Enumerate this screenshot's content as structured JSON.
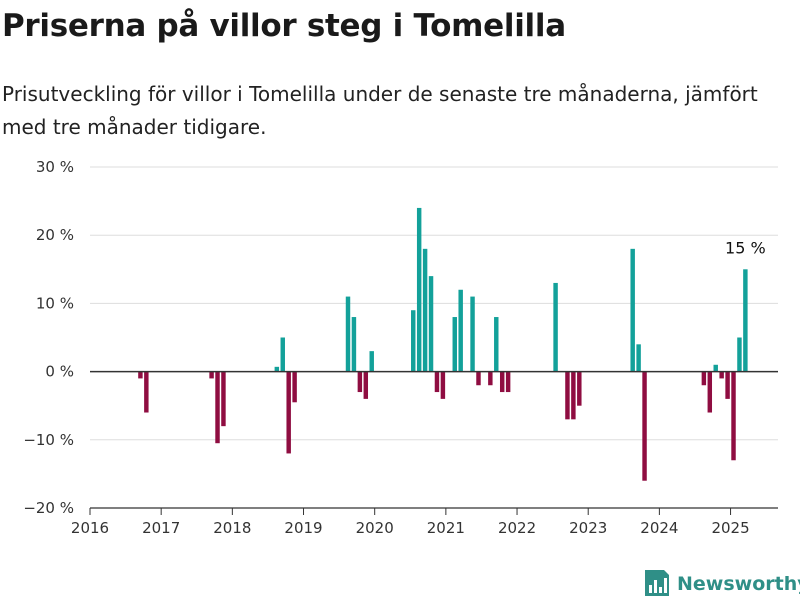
{
  "header": {
    "title": "Priserna på villor steg i Tomelilla",
    "subtitle": "Prisutveckling för villor i Tomelilla under de senaste tre månaderna, jämfört med tre månader tidigare."
  },
  "brand": {
    "name": "Newsworthy",
    "icon": "newsworthy-logo-icon",
    "color": "#2f8f87"
  },
  "colors": {
    "positive": "#13a19a",
    "negative": "#8f0d41",
    "grid": "#dddddd",
    "zero_line": "#333333"
  },
  "chart_data": {
    "type": "bar",
    "title": "Priserna på villor steg i Tomelilla",
    "xlabel": "",
    "ylabel": "",
    "ylim": [
      -20,
      30
    ],
    "xlim": [
      "2016-01",
      "2025-09"
    ],
    "y_ticks": [
      30,
      20,
      10,
      0,
      -10,
      -20
    ],
    "y_tick_labels": [
      "30 %",
      "20 %",
      "10 %",
      "0 %",
      "−10 %",
      "−20 %"
    ],
    "x_ticks": [
      "2016",
      "2017",
      "2018",
      "2019",
      "2020",
      "2021",
      "2022",
      "2023",
      "2024",
      "2025"
    ],
    "grid": true,
    "legend": "none",
    "annotation": {
      "date": "2025-03",
      "value": 15,
      "text": "15 %"
    },
    "points": [
      {
        "date": "2016-09",
        "value": -1
      },
      {
        "date": "2016-10",
        "value": -6
      },
      {
        "date": "2017-09",
        "value": -1
      },
      {
        "date": "2017-10",
        "value": -10.5
      },
      {
        "date": "2017-11",
        "value": -8
      },
      {
        "date": "2018-08",
        "value": 0.7
      },
      {
        "date": "2018-09",
        "value": 5
      },
      {
        "date": "2018-10",
        "value": -12
      },
      {
        "date": "2018-11",
        "value": -4.5
      },
      {
        "date": "2019-08",
        "value": 11
      },
      {
        "date": "2019-09",
        "value": 8
      },
      {
        "date": "2019-10",
        "value": -3
      },
      {
        "date": "2019-11",
        "value": -4
      },
      {
        "date": "2019-12",
        "value": 3
      },
      {
        "date": "2020-07",
        "value": 9
      },
      {
        "date": "2020-08",
        "value": 24
      },
      {
        "date": "2020-09",
        "value": 18
      },
      {
        "date": "2020-10",
        "value": 14
      },
      {
        "date": "2020-11",
        "value": -3
      },
      {
        "date": "2020-12",
        "value": -4
      },
      {
        "date": "2021-02",
        "value": 8
      },
      {
        "date": "2021-03",
        "value": 12
      },
      {
        "date": "2021-05",
        "value": 11
      },
      {
        "date": "2021-06",
        "value": -2
      },
      {
        "date": "2021-08",
        "value": -2
      },
      {
        "date": "2021-09",
        "value": 8
      },
      {
        "date": "2021-10",
        "value": -3
      },
      {
        "date": "2021-11",
        "value": -3
      },
      {
        "date": "2022-07",
        "value": 13
      },
      {
        "date": "2022-09",
        "value": -7
      },
      {
        "date": "2022-10",
        "value": -7
      },
      {
        "date": "2022-11",
        "value": -5
      },
      {
        "date": "2023-08",
        "value": 18
      },
      {
        "date": "2023-09",
        "value": 4
      },
      {
        "date": "2023-10",
        "value": -16
      },
      {
        "date": "2024-08",
        "value": -2
      },
      {
        "date": "2024-09",
        "value": -6
      },
      {
        "date": "2024-10",
        "value": 1
      },
      {
        "date": "2024-11",
        "value": -1
      },
      {
        "date": "2024-12",
        "value": -4
      },
      {
        "date": "2025-01",
        "value": -13
      },
      {
        "date": "2025-02",
        "value": 5
      },
      {
        "date": "2025-03",
        "value": 15
      }
    ]
  }
}
